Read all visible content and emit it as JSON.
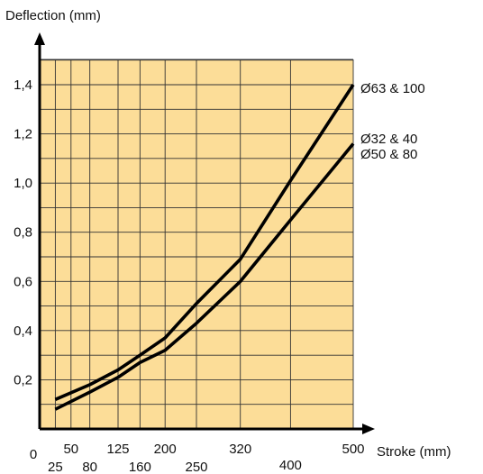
{
  "chart_data": {
    "type": "line",
    "ylabel": "Deflection (mm)",
    "xlabel": "Stroke (mm)",
    "background_color": "#FCDD98",
    "line_color": "#000000",
    "grid": true,
    "xlim": [
      0,
      500
    ],
    "ylim": [
      0,
      1.4
    ],
    "x_ticks": [
      {
        "value": 0,
        "label": "0"
      },
      {
        "value": 25,
        "label": "25"
      },
      {
        "value": 50,
        "label": "50"
      },
      {
        "value": 80,
        "label": "80"
      },
      {
        "value": 125,
        "label": "125"
      },
      {
        "value": 160,
        "label": "160"
      },
      {
        "value": 200,
        "label": "200"
      },
      {
        "value": 250,
        "label": "250"
      },
      {
        "value": 320,
        "label": "320"
      },
      {
        "value": 400,
        "label": "400"
      },
      {
        "value": 500,
        "label": "500"
      }
    ],
    "y_ticks": [
      {
        "value": 0.2,
        "label": "0,2"
      },
      {
        "value": 0.4,
        "label": "0,4"
      },
      {
        "value": 0.6,
        "label": "0,6"
      },
      {
        "value": 0.8,
        "label": "0,8"
      },
      {
        "value": 1.0,
        "label": "1,0"
      },
      {
        "value": 1.2,
        "label": "1,2"
      },
      {
        "value": 1.4,
        "label": "1,4"
      }
    ],
    "series": [
      {
        "name": "Ø63 & 100",
        "x": [
          25,
          80,
          125,
          160,
          200,
          250,
          320,
          400,
          500
        ],
        "y": [
          0.12,
          0.18,
          0.24,
          0.3,
          0.37,
          0.51,
          0.69,
          1.01,
          1.4
        ]
      },
      {
        "name": "Ø32 & 40\nØ50 & 80",
        "legend_lines": [
          "Ø32 & 40",
          "Ø50 & 80"
        ],
        "x": [
          25,
          80,
          125,
          160,
          200,
          250,
          320,
          400,
          500
        ],
        "y": [
          0.08,
          0.15,
          0.21,
          0.27,
          0.32,
          0.43,
          0.6,
          0.85,
          1.16
        ]
      }
    ]
  }
}
